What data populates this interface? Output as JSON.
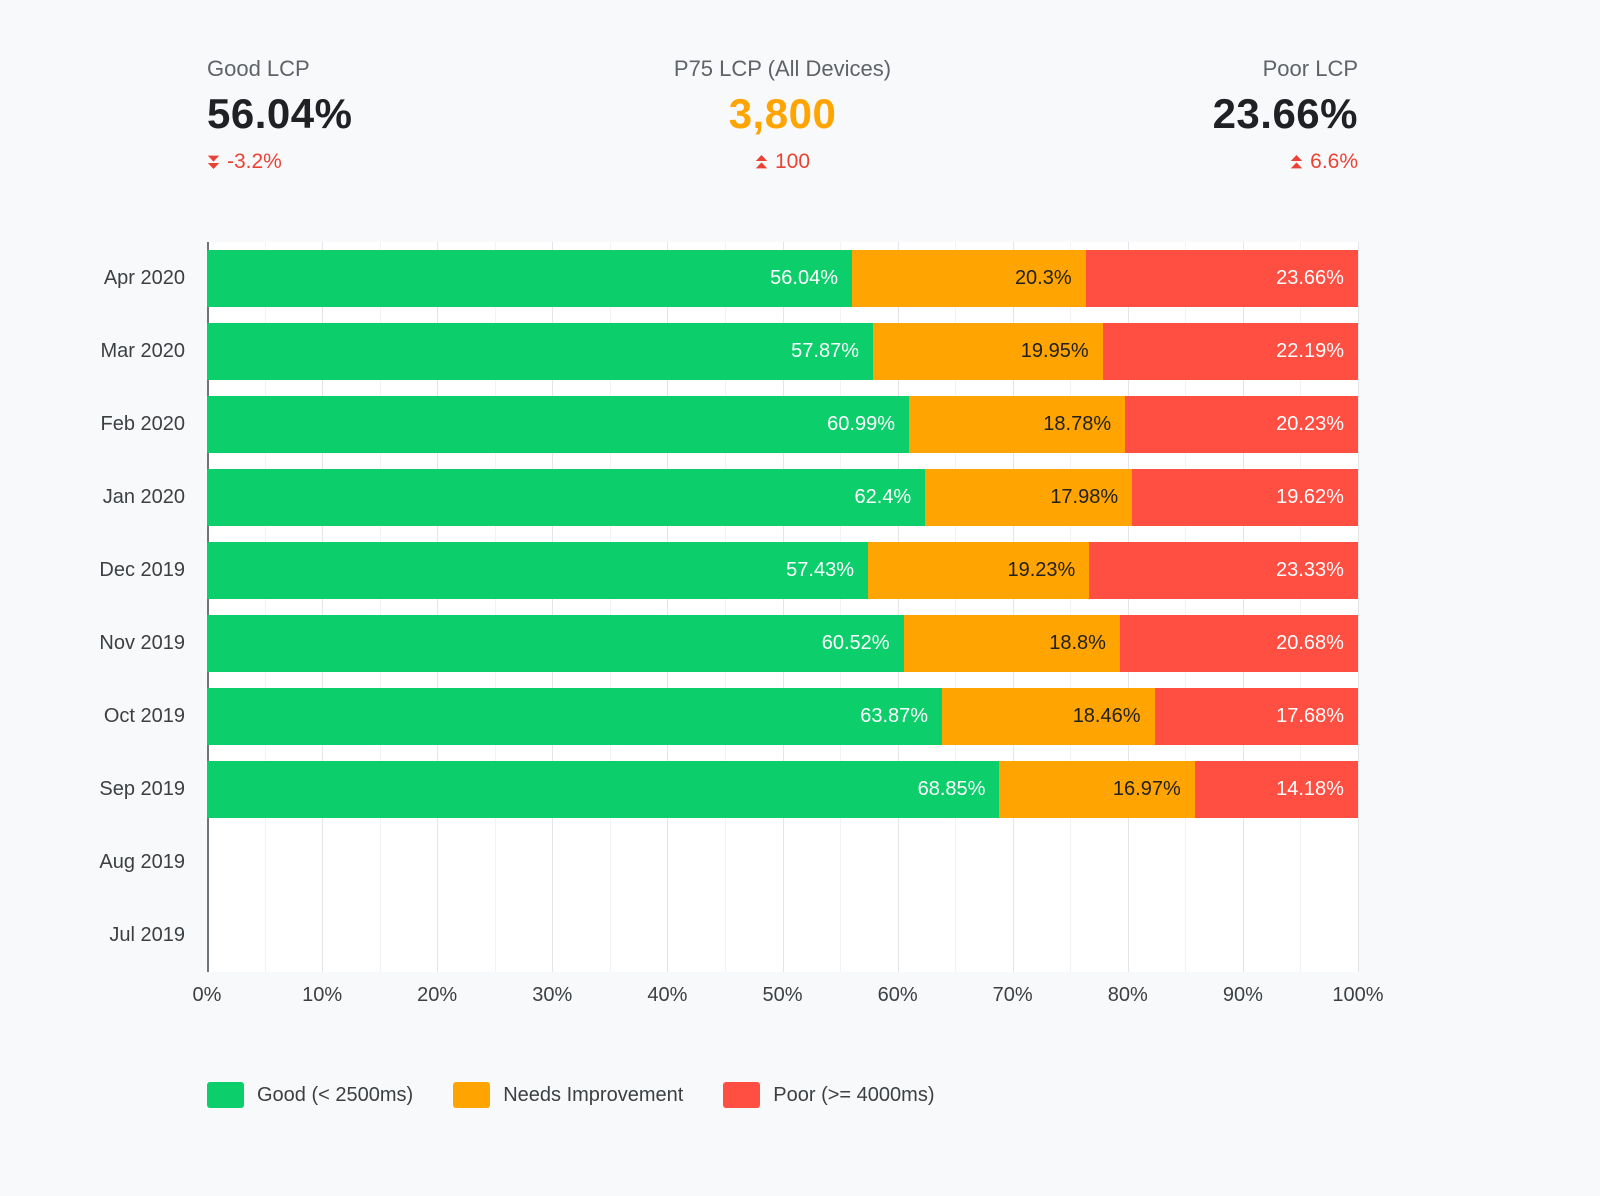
{
  "kpis": [
    {
      "title": "Good LCP",
      "value": "56.04%",
      "delta": "-3.2%",
      "direction": "down"
    },
    {
      "title": "P75 LCP (All Devices)",
      "value": "3,800",
      "delta": "100",
      "direction": "up"
    },
    {
      "title": "Poor LCP",
      "value": "23.66%",
      "delta": "6.6%",
      "direction": "up"
    }
  ],
  "colors": {
    "good": "#0CCE6B",
    "needs_improvement": "#FFA400",
    "poor": "#FF4E42",
    "delta_red": "#EA4335",
    "p75_value_orange": "#FFA400",
    "page_background": "#F8F9FA"
  },
  "chart_data": {
    "type": "bar",
    "orientation": "horizontal",
    "stacked": true,
    "title": "",
    "categories": [
      "Apr 2020",
      "Mar 2020",
      "Feb 2020",
      "Jan 2020",
      "Dec 2019",
      "Nov 2019",
      "Oct 2019",
      "Sep 2019",
      "Aug 2019",
      "Jul 2019"
    ],
    "series": [
      {
        "name": "Good (< 2500ms)",
        "key": "good",
        "color": "#0CCE6B",
        "label_color": "#FFFFFF",
        "values": [
          56.04,
          57.87,
          60.99,
          62.4,
          57.43,
          60.52,
          63.87,
          68.85,
          null,
          null
        ]
      },
      {
        "name": "Needs Improvement",
        "key": "needs-improvement",
        "color": "#FFA400",
        "label_color": "#212121",
        "values": [
          20.3,
          19.95,
          18.78,
          17.98,
          19.23,
          18.8,
          18.46,
          16.97,
          null,
          null
        ]
      },
      {
        "name": "Poor (>= 4000ms)",
        "key": "poor",
        "color": "#FF4E42",
        "label_color": "#FFFFFF",
        "values": [
          23.66,
          22.19,
          20.23,
          19.62,
          23.33,
          20.68,
          17.68,
          14.18,
          null,
          null
        ]
      }
    ],
    "x_ticks": [
      "0%",
      "10%",
      "20%",
      "30%",
      "40%",
      "50%",
      "60%",
      "70%",
      "80%",
      "90%",
      "100%"
    ],
    "xlim": [
      0,
      100
    ],
    "grid": "vertical, major every 10%, minor every 5%",
    "legend_position": "bottom"
  }
}
